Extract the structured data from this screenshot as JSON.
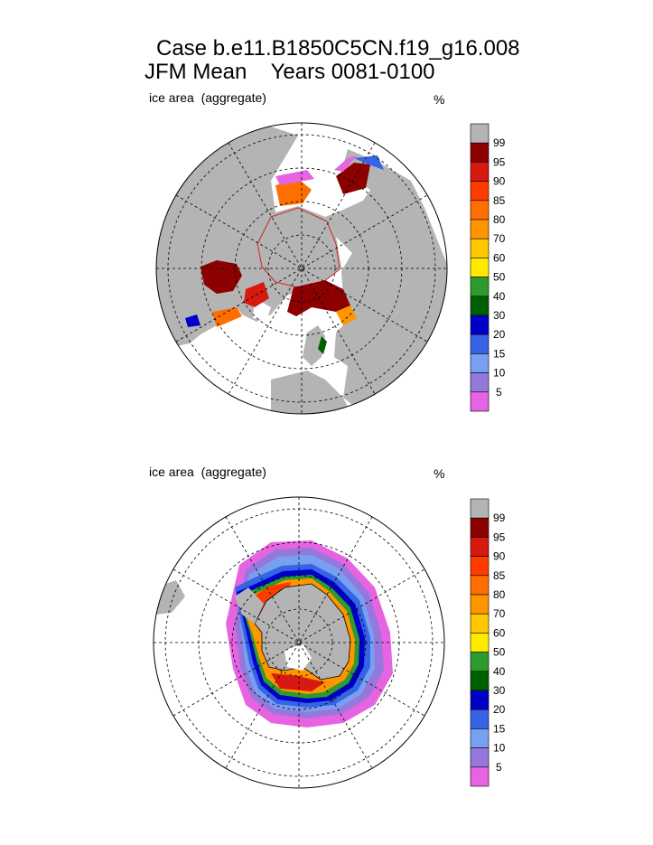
{
  "header": {
    "title_line1": "Case b.e11.B1850C5CN.f19_g16.008",
    "title_line2": "JFM Mean    Years 0081-0100"
  },
  "panels": [
    {
      "id": "north",
      "variable_label": "ice area  (aggregate)",
      "unit": "%"
    },
    {
      "id": "south",
      "variable_label": "ice area  (aggregate)",
      "unit": "%"
    }
  ],
  "colorbar": {
    "levels": [
      "99",
      "95",
      "90",
      "85",
      "80",
      "70",
      "60",
      "50",
      "40",
      "30",
      "20",
      "15",
      "10",
      "5"
    ],
    "colors": [
      "#b4b4b4",
      "#8c0000",
      "#d7190f",
      "#ff3c00",
      "#ff6e00",
      "#ff9600",
      "#ffc800",
      "#ffeb00",
      "#2d9b2d",
      "#005f00",
      "#0000c8",
      "#3764e6",
      "#78a0f0",
      "#9678dc",
      "#e664e1"
    ]
  },
  "colors": {
    "land": "#b4b4b4",
    "ocean": "#ffffff",
    "grid": "#000000"
  }
}
